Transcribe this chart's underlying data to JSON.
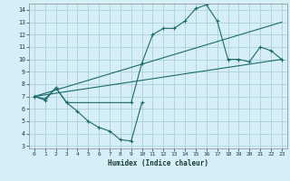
{
  "xlabel": "Humidex (Indice chaleur)",
  "bg_color": "#d6eef5",
  "grid_color": "#aacfdb",
  "line_color": "#1a6b6b",
  "xlim": [
    -0.5,
    23.5
  ],
  "ylim": [
    2.8,
    14.5
  ],
  "xticks": [
    0,
    1,
    2,
    3,
    4,
    5,
    6,
    7,
    8,
    9,
    10,
    11,
    12,
    13,
    14,
    15,
    16,
    17,
    18,
    19,
    20,
    21,
    22,
    23
  ],
  "yticks": [
    3,
    4,
    5,
    6,
    7,
    8,
    9,
    10,
    11,
    12,
    13,
    14
  ],
  "line1_x": [
    0,
    1,
    2,
    3,
    9,
    10,
    11,
    12,
    13,
    14,
    15,
    16,
    17,
    18,
    19,
    20,
    21,
    22,
    23
  ],
  "line1_y": [
    7.0,
    6.8,
    7.7,
    6.5,
    6.5,
    9.7,
    12.0,
    12.5,
    12.5,
    13.1,
    14.1,
    14.4,
    13.1,
    10.0,
    10.0,
    9.8,
    11.0,
    10.7,
    10.0
  ],
  "line2_x": [
    0,
    23
  ],
  "line2_y": [
    7.0,
    10.0
  ],
  "line3_x": [
    0,
    23
  ],
  "line3_y": [
    7.0,
    13.0
  ],
  "line4_x": [
    0,
    1,
    2,
    3,
    4,
    5,
    6,
    7,
    8,
    9,
    10
  ],
  "line4_y": [
    7.0,
    6.7,
    7.7,
    6.5,
    5.8,
    5.0,
    4.5,
    4.2,
    3.5,
    3.4,
    6.5
  ]
}
